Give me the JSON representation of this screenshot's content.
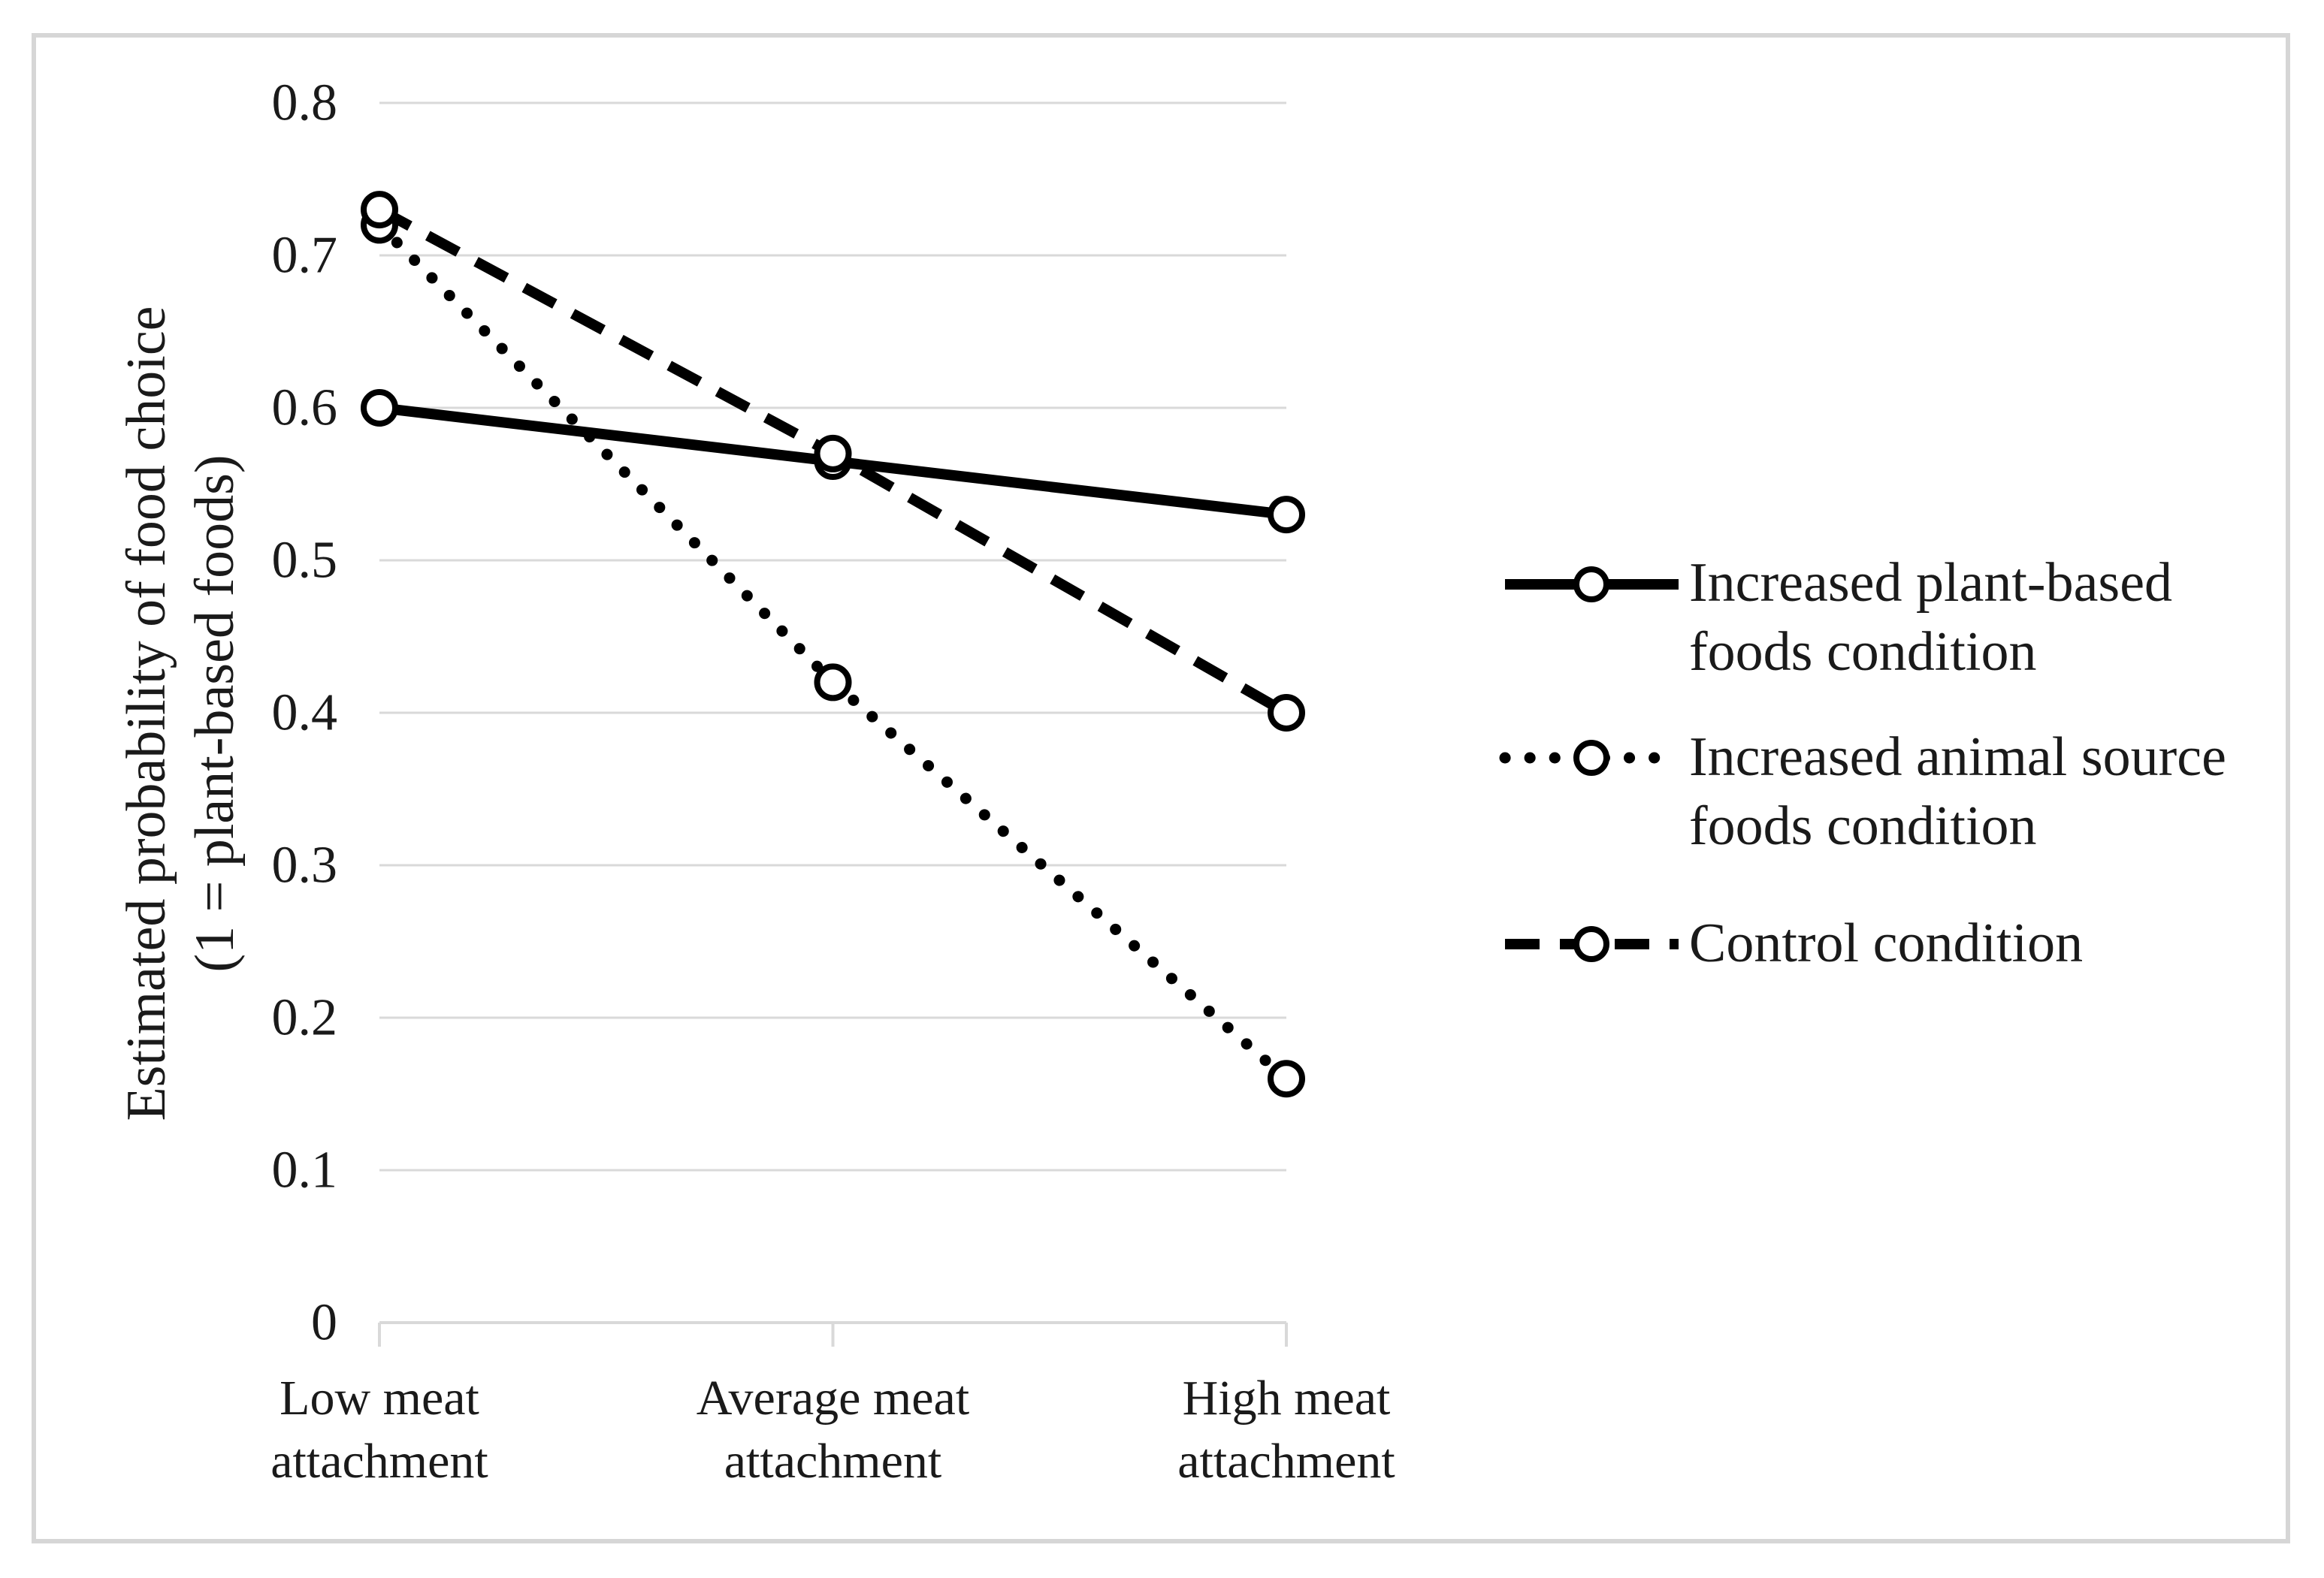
{
  "figure": {
    "background": "#ffffff",
    "border_color": "#d6d6d6",
    "grid_color": "#d9d9d9",
    "axis_color": "#d9d9d9",
    "text_color": "#1a1a1a",
    "line_color": "#000000",
    "marker_fill": "#ffffff"
  },
  "chart_data": {
    "type": "line",
    "title": "",
    "xlabel": "",
    "ylabel": "Estimated probability of food choice (1 = plant-based foods)",
    "ylabel_lines": [
      "Estimated probability of food choice",
      "(1 = plant-based foods)"
    ],
    "categories": [
      "Low meat attachment",
      "Average meat attachment",
      "High meat attachment"
    ],
    "category_label_lines": [
      [
        "Low meat",
        "attachment"
      ],
      [
        "Average meat",
        "attachment"
      ],
      [
        "High meat",
        "attachment"
      ]
    ],
    "series": [
      {
        "name": "Increased plant-based foods condition",
        "style": "solid",
        "values": [
          0.6,
          0.565,
          0.53
        ]
      },
      {
        "name": "Increased animal source foods condition",
        "style": "dotted",
        "values": [
          0.72,
          0.42,
          0.16
        ]
      },
      {
        "name": "Control condition",
        "style": "dashed",
        "values": [
          0.73,
          0.57,
          0.4
        ]
      }
    ],
    "y_ticks": [
      0,
      0.1,
      0.2,
      0.3,
      0.4,
      0.5,
      0.6,
      0.7,
      0.8
    ],
    "y_tick_labels": [
      "0",
      "0.1",
      "0.2",
      "0.3",
      "0.4",
      "0.5",
      "0.6",
      "0.7",
      "0.8"
    ],
    "ylim": [
      0,
      0.8
    ],
    "grid": true,
    "marker": "circle",
    "legend_position": "right"
  },
  "legend": {
    "items": [
      {
        "style": "solid",
        "label_lines": [
          "Increased plant-based",
          "foods condition"
        ]
      },
      {
        "style": "dotted",
        "label_lines": [
          "Increased animal source",
          "foods condition"
        ]
      },
      {
        "style": "dashed",
        "label_lines": [
          "Control condition"
        ]
      }
    ]
  }
}
